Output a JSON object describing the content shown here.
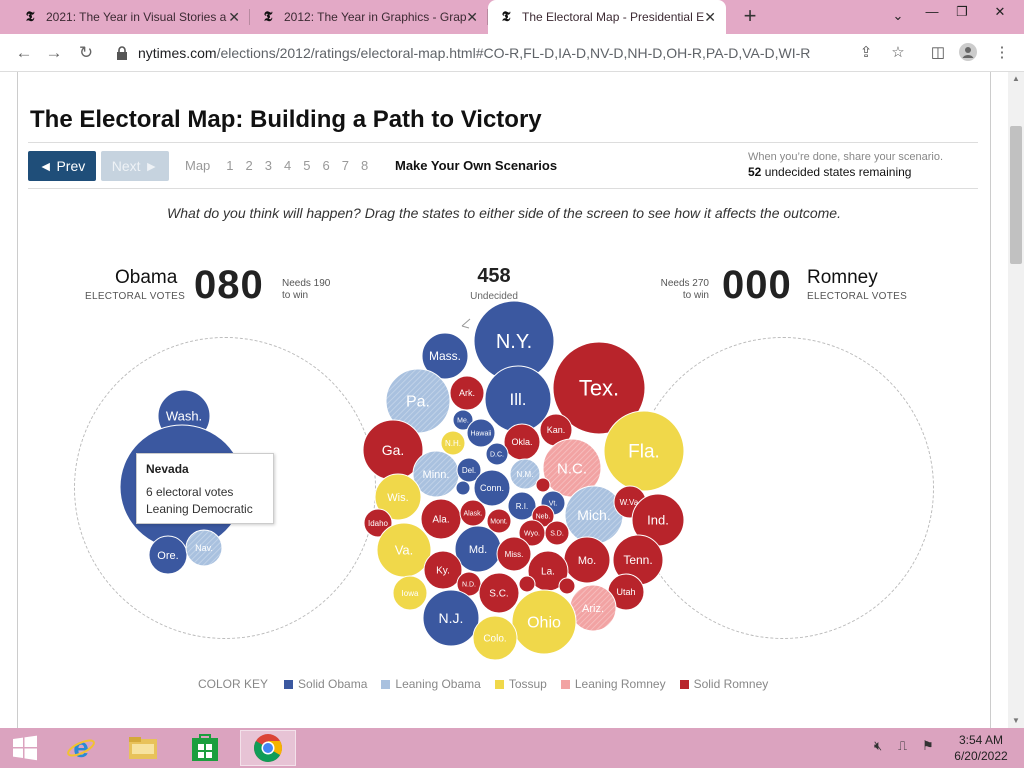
{
  "browser": {
    "tabs": [
      {
        "label": "2021: The Year in Visual Stories a",
        "icon": "nyt-t-icon",
        "active": false
      },
      {
        "label": "2012: The Year in Graphics - Grap",
        "icon": "nyt-t-icon",
        "active": false
      },
      {
        "label": "The Electoral Map - Presidential E",
        "icon": "nyt-t-icon",
        "active": true
      }
    ],
    "url_host": "nytimes.com",
    "url_path": "/elections/2012/ratings/electoral-map.html#CO-R,FL-D,IA-D,NV-D,NH-D,OH-R,PA-D,VA-D,WI-R"
  },
  "page": {
    "title": "The Electoral Map: Building a Path to Victory",
    "nav": {
      "prev": "◄ Prev",
      "next": "Next ►",
      "map": "Map",
      "steps": [
        "1",
        "2",
        "3",
        "4",
        "5",
        "6",
        "7",
        "8"
      ],
      "make_own": "Make Your Own Scenarios"
    },
    "share": {
      "hint": "When you’re done, share your scenario.",
      "remaining_count": "52",
      "remaining_text": " undecided states remaining"
    },
    "prompt": "What do you think will happen? Drag the states to either side of the screen to see how it affects the outcome.",
    "obama": {
      "name": "Obama",
      "sub": "ELECTORAL VOTES",
      "votes": "080",
      "needs_line1": "Needs 190",
      "needs_line2": "to win"
    },
    "romney": {
      "name": "Romney",
      "sub": "ELECTORAL VOTES",
      "votes": "000",
      "needs_line1": "Needs 270",
      "needs_line2": "to win"
    },
    "undecided": {
      "count": "458",
      "label": "Undecided"
    },
    "tooltip": {
      "name": "Nevada",
      "line1": "6 electoral votes",
      "line2": "Leaning Democratic"
    },
    "legend": {
      "title": "COLOR KEY",
      "items": [
        {
          "label": "Solid Obama",
          "color": "#3b58a0"
        },
        {
          "label": "Leaning Obama",
          "color": "#a9c1df"
        },
        {
          "label": "Tossup",
          "color": "#f0d84a"
        },
        {
          "label": "Leaning Romney",
          "color": "#f2a3a3"
        },
        {
          "label": "Solid Romney",
          "color": "#b8242b"
        }
      ]
    },
    "colors": {
      "solid_obama": "#3b58a0",
      "leaning_obama": "#a9c1df",
      "tossup": "#f0d84a",
      "leaning_romney": "#f2a3a3",
      "solid_romney": "#b8242b"
    },
    "obama_states": [
      {
        "label": "Wash.",
        "cat": "solid_obama"
      },
      {
        "label": "",
        "cat": "solid_obama"
      },
      {
        "label": "Ore.",
        "cat": "solid_obama"
      },
      {
        "label": "Nav.",
        "cat": "leaning_obama"
      }
    ],
    "undecided_states": [
      {
        "label": "N.Y.",
        "cat": "solid_obama"
      },
      {
        "label": "Tex.",
        "cat": "solid_romney"
      },
      {
        "label": "Mass.",
        "cat": "solid_obama"
      },
      {
        "label": "Pa.",
        "cat": "leaning_obama"
      },
      {
        "label": "Ill.",
        "cat": "solid_obama"
      },
      {
        "label": "Ark.",
        "cat": "solid_romney"
      },
      {
        "label": "Me.",
        "cat": "solid_obama"
      },
      {
        "label": "N.H.",
        "cat": "tossup"
      },
      {
        "label": "Hawaii",
        "cat": "solid_obama"
      },
      {
        "label": "Kan.",
        "cat": "solid_romney"
      },
      {
        "label": "Okla.",
        "cat": "solid_romney"
      },
      {
        "label": "Ga.",
        "cat": "solid_romney"
      },
      {
        "label": "D.C.",
        "cat": "solid_obama"
      },
      {
        "label": "N.C.",
        "cat": "leaning_romney"
      },
      {
        "label": "Fla.",
        "cat": "tossup"
      },
      {
        "label": "Minn.",
        "cat": "leaning_obama"
      },
      {
        "label": "Del.",
        "cat": "solid_obama"
      },
      {
        "label": "N.M.",
        "cat": "leaning_obama"
      },
      {
        "label": "Wis.",
        "cat": "tossup"
      },
      {
        "label": "Conn.",
        "cat": "solid_obama"
      },
      {
        "label": "R.I.",
        "cat": "solid_obama"
      },
      {
        "label": "Vt.",
        "cat": "solid_obama"
      },
      {
        "label": "Mich.",
        "cat": "leaning_obama"
      },
      {
        "label": "W.Va.",
        "cat": "solid_romney"
      },
      {
        "label": "Idaho",
        "cat": "solid_romney"
      },
      {
        "label": "Ala.",
        "cat": "solid_romney"
      },
      {
        "label": "Alask.",
        "cat": "solid_romney"
      },
      {
        "label": "Neb.",
        "cat": "solid_romney"
      },
      {
        "label": "Ind.",
        "cat": "solid_romney"
      },
      {
        "label": "Mont.",
        "cat": "solid_romney"
      },
      {
        "label": "Wyo.",
        "cat": "solid_romney"
      },
      {
        "label": "S.D.",
        "cat": "solid_romney"
      },
      {
        "label": "Va.",
        "cat": "tossup"
      },
      {
        "label": "Md.",
        "cat": "solid_obama"
      },
      {
        "label": "Miss.",
        "cat": "solid_romney"
      },
      {
        "label": "Mo.",
        "cat": "solid_romney"
      },
      {
        "label": "Tenn.",
        "cat": "solid_romney"
      },
      {
        "label": "Ky.",
        "cat": "solid_romney"
      },
      {
        "label": "La.",
        "cat": "solid_romney"
      },
      {
        "label": "N.D.",
        "cat": "solid_romney"
      },
      {
        "label": "Iowa",
        "cat": "tossup"
      },
      {
        "label": "S.C.",
        "cat": "solid_romney"
      },
      {
        "label": "Utah",
        "cat": "solid_romney"
      },
      {
        "label": "Ariz.",
        "cat": "leaning_romney"
      },
      {
        "label": "N.J.",
        "cat": "solid_obama"
      },
      {
        "label": "Ohio",
        "cat": "tossup"
      },
      {
        "label": "Colo.",
        "cat": "tossup"
      },
      {
        "label": "",
        "cat": "solid_obama"
      },
      {
        "label": "",
        "cat": "solid_romney"
      },
      {
        "label": "",
        "cat": "solid_romney"
      },
      {
        "label": "",
        "cat": "solid_romney"
      }
    ]
  },
  "taskbar": {
    "apps": [
      {
        "name": "internet-explorer-icon",
        "active": false
      },
      {
        "name": "file-explorer-icon",
        "active": false
      },
      {
        "name": "store-icon",
        "active": false
      },
      {
        "name": "chrome-icon",
        "active": true
      }
    ],
    "time": "3:54 AM",
    "date": "6/20/2022"
  }
}
